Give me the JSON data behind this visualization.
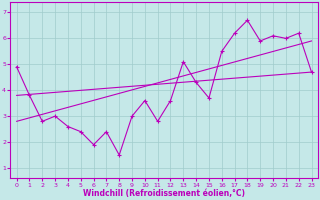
{
  "xlabel": "Windchill (Refroidissement éolien,°C)",
  "background_color": "#c5e8e8",
  "line_color": "#bb00bb",
  "xlim": [
    -0.5,
    23.5
  ],
  "ylim": [
    0.6,
    7.4
  ],
  "x_ticks": [
    0,
    1,
    2,
    3,
    4,
    5,
    6,
    7,
    8,
    9,
    10,
    11,
    12,
    13,
    14,
    15,
    16,
    17,
    18,
    19,
    20,
    21,
    22,
    23
  ],
  "y_ticks": [
    1,
    2,
    3,
    4,
    5,
    6,
    7
  ],
  "grid_color": "#a0cccc",
  "series1_x": [
    0,
    1,
    2,
    3,
    4,
    5,
    6,
    7,
    8,
    9,
    10,
    11,
    12,
    13,
    14,
    15,
    16,
    17,
    18,
    19,
    20,
    21,
    22,
    23
  ],
  "series1_y": [
    4.9,
    3.8,
    2.8,
    3.0,
    2.6,
    2.4,
    1.9,
    2.4,
    1.5,
    3.0,
    3.6,
    2.8,
    3.6,
    5.1,
    4.3,
    3.7,
    5.5,
    6.2,
    6.7,
    5.9,
    6.1,
    6.0,
    6.2,
    4.7
  ],
  "series2_x": [
    0,
    23
  ],
  "series2_y": [
    3.8,
    4.7
  ],
  "series3_x": [
    0,
    23
  ],
  "series3_y": [
    2.8,
    5.9
  ]
}
